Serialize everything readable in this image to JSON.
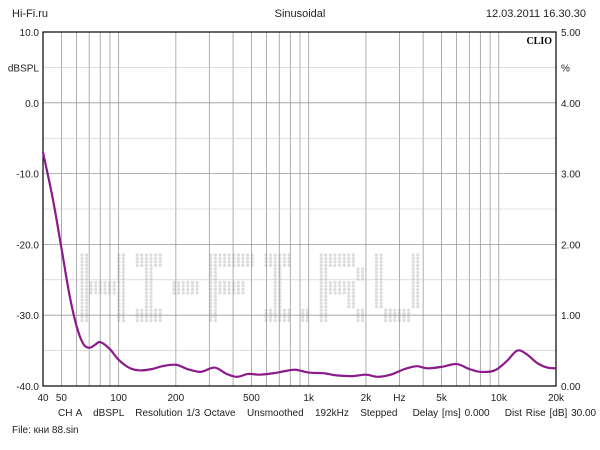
{
  "header": {
    "left": "Hi-Fi.ru",
    "center": "Sinusoidal",
    "right": "12.03.2011 16.30.30"
  },
  "brand": "CLIO",
  "watermark": "HI-FI.RU",
  "colors": {
    "curve": "#8b1a8b",
    "grid": "#9a9a9a",
    "frame": "#000000",
    "watermark": "#dcdcdc"
  },
  "chart_data": {
    "type": "line",
    "xscale": "log",
    "xlim": [
      40,
      20000
    ],
    "ylim": [
      -40,
      10
    ],
    "y2lim": [
      0,
      5
    ],
    "ylabel": "dBSPL",
    "y2label": "%",
    "xlabel": "Hz",
    "y_ticks": [
      "10.0",
      "0.0",
      "-10.0",
      "-20.0",
      "-30.0",
      "-40.0"
    ],
    "y2_ticks": [
      "5.00",
      "4.00",
      "3.00",
      "2.00",
      "1.00",
      "0.00"
    ],
    "x_tick_labels": [
      {
        "f": 40,
        "label": "40"
      },
      {
        "f": 50,
        "label": "50"
      },
      {
        "f": 100,
        "label": "100"
      },
      {
        "f": 200,
        "label": "200"
      },
      {
        "f": 500,
        "label": "500"
      },
      {
        "f": 1000,
        "label": "1k"
      },
      {
        "f": 2000,
        "label": "2k"
      },
      {
        "f": 3000,
        "label": "Hz"
      },
      {
        "f": 5000,
        "label": "5k"
      },
      {
        "f": 10000,
        "label": "10k"
      },
      {
        "f": 20000,
        "label": "20k"
      }
    ],
    "series": [
      {
        "x": [
          40,
          45,
          50,
          55,
          60,
          65,
          70,
          75,
          80,
          90,
          100,
          115,
          130,
          150,
          170,
          200,
          230,
          270,
          320,
          370,
          420,
          480,
          550,
          650,
          750,
          850,
          1000,
          1200,
          1400,
          1700,
          2000,
          2300,
          2700,
          3200,
          3700,
          4200,
          5000,
          6000,
          7000,
          8000,
          9500,
          11000,
          12500,
          14000,
          16000,
          18000,
          20000
        ],
        "y": [
          -7.0,
          -13.5,
          -20.5,
          -27.0,
          -31.5,
          -34.0,
          -34.6,
          -34.2,
          -33.8,
          -34.8,
          -36.3,
          -37.5,
          -37.8,
          -37.6,
          -37.2,
          -37.0,
          -37.6,
          -38.0,
          -37.4,
          -38.3,
          -38.7,
          -38.3,
          -38.4,
          -38.2,
          -37.9,
          -37.7,
          -38.1,
          -38.2,
          -38.5,
          -38.6,
          -38.4,
          -38.7,
          -38.4,
          -37.6,
          -37.2,
          -37.5,
          -37.3,
          -36.9,
          -37.6,
          -38.0,
          -37.8,
          -36.5,
          -35.0,
          -35.5,
          -36.8,
          -37.4,
          -37.5
        ]
      }
    ]
  },
  "footer": {
    "line": "CH A   dBSPL   Resolution 1/3 Octave   Unsmoothed   192kHz   Stepped    Delay [ms] 0.000    Dist Rise [dB] 30.00",
    "file": "File: кни 88.sin"
  }
}
